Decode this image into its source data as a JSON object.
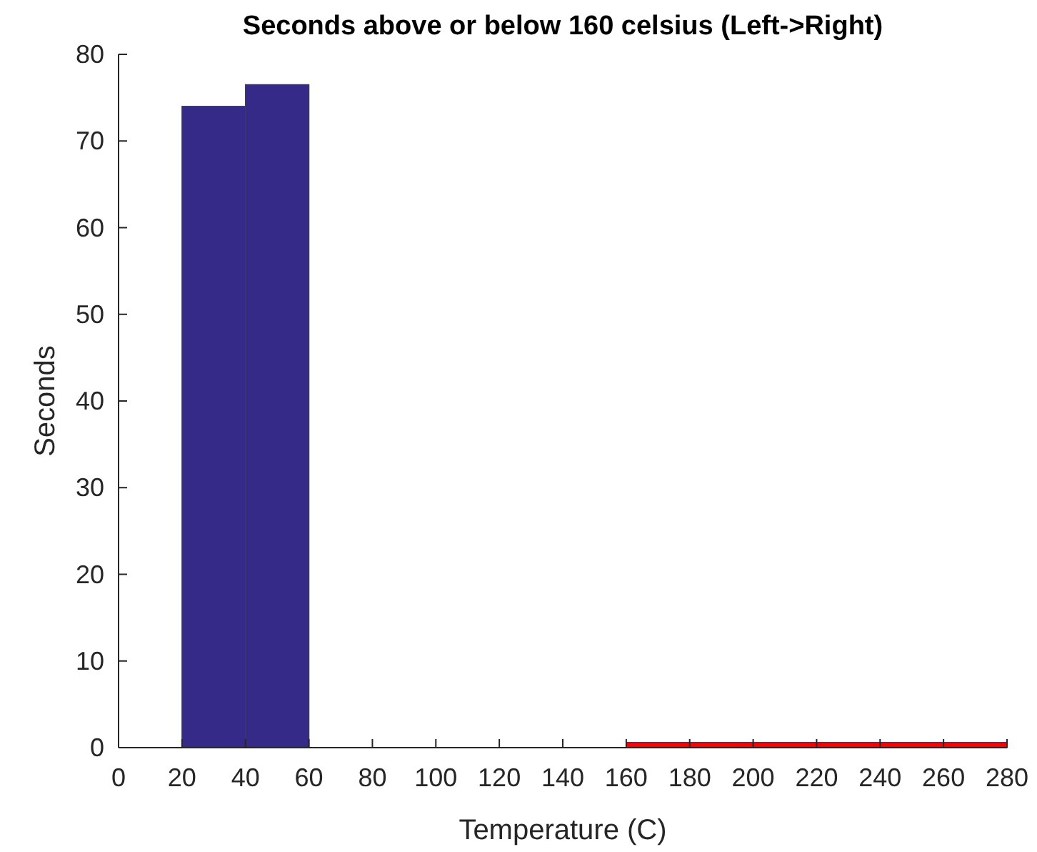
{
  "chart_data": {
    "type": "histogram",
    "title": "Seconds above or below 160 celsius (Left->Right)",
    "xlabel": "Temperature (C)",
    "ylabel": "Seconds",
    "bins": [
      20,
      40,
      60,
      160,
      280
    ],
    "values": [
      74,
      76.5,
      0,
      0.6
    ],
    "colors": [
      "#352a87",
      "#352a87",
      "#352a87",
      "#ff0000"
    ],
    "xlim": [
      0,
      280
    ],
    "xticks": [
      0,
      20,
      40,
      60,
      80,
      100,
      120,
      140,
      160,
      180,
      200,
      220,
      240,
      260,
      280
    ],
    "ylim": [
      0,
      80
    ],
    "yticks": [
      0,
      10,
      20,
      30,
      40,
      50,
      60,
      70,
      80
    ],
    "grid": false
  }
}
